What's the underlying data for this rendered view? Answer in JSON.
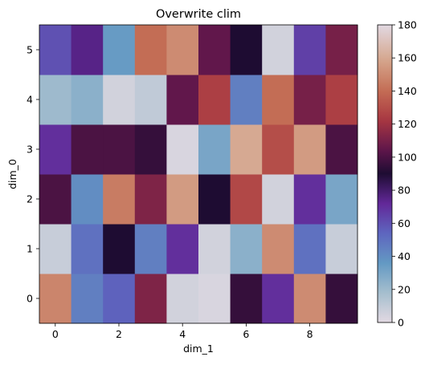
{
  "chart_data": {
    "type": "heatmap",
    "title": "Overwrite clim",
    "xlabel": "dim_1",
    "ylabel": "dim_0",
    "x_ticks": [
      0,
      2,
      4,
      6,
      8
    ],
    "y_ticks": [
      0,
      1,
      2,
      3,
      4,
      5
    ],
    "colorbar_ticks": [
      0,
      20,
      40,
      60,
      80,
      100,
      120,
      140,
      160,
      180
    ],
    "clim": [
      0,
      180
    ],
    "colormap": "twilight",
    "rows_dim_0": [
      0,
      1,
      2,
      3,
      4,
      5
    ],
    "cols_dim_1": [
      0,
      1,
      2,
      3,
      4,
      5,
      6,
      7,
      8,
      9
    ],
    "values": [
      [
        148,
        45,
        55,
        112,
        5,
        3,
        95,
        70,
        150,
        95
      ],
      [
        8,
        50,
        90,
        45,
        70,
        5,
        25,
        150,
        50,
        8
      ],
      [
        100,
        40,
        145,
        112,
        155,
        90,
        128,
        5,
        70,
        30
      ],
      [
        70,
        100,
        100,
        95,
        3,
        30,
        160,
        130,
        155,
        100
      ],
      [
        20,
        25,
        5,
        10,
        105,
        125,
        45,
        140,
        110,
        125
      ],
      [
        60,
        75,
        35,
        140,
        150,
        105,
        90,
        5,
        65,
        110
      ]
    ]
  }
}
